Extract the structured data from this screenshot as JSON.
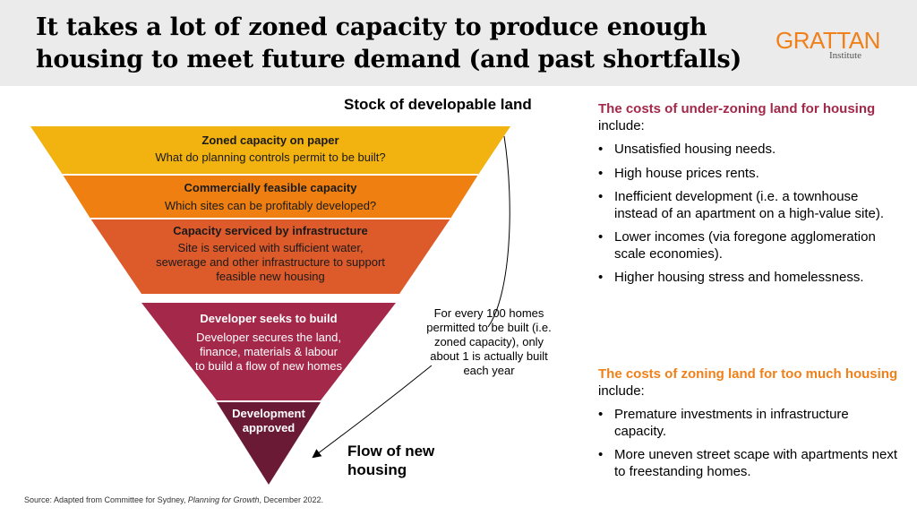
{
  "header": {
    "title_line1": "It takes a lot of zoned capacity to produce enough",
    "title_line2": "housing to meet future demand (and past shortfalls)",
    "logo_main": "GRATTAN",
    "logo_sub": "Institute"
  },
  "diagram": {
    "stock_heading": "Stock of developable land",
    "flow_heading": "Flow of new housing",
    "stock_levels": [
      {
        "title": "Zoned capacity on paper",
        "desc": "What do planning controls permit to be built?",
        "color": "#f2b20f"
      },
      {
        "title": "Commercially feasible capacity",
        "desc": "Which sites can be profitably developed?",
        "color": "#ee7f10"
      },
      {
        "title": "Capacity serviced by infrastructure",
        "desc": "Site is serviced with sufficient water, sewerage and other infrastructure to support feasible new housing",
        "color": "#dd5a2a"
      }
    ],
    "flow_levels": [
      {
        "title": "Developer seeks to build",
        "desc": "Developer secures the land, finance, materials & labour to build a flow of new homes",
        "color": "#a3284a"
      },
      {
        "title": "Development approved",
        "desc": "",
        "color": "#6b1a35"
      }
    ],
    "annotation": "For every 100 homes permitted to be built (i.e. zoned capacity), only about 1 is actually built each year"
  },
  "costs_under": {
    "heading_highlight": "The costs of under-zoning land for housing",
    "heading_rest": " include:",
    "items": [
      "Unsatisfied housing needs.",
      "High house prices rents.",
      "Inefficient development (i.e. a townhouse instead of an apartment on a high-value site).",
      "Lower incomes (via foregone agglomeration scale economies).",
      "Higher housing stress and homelessness."
    ]
  },
  "costs_over": {
    "heading_highlight": "The costs of zoning land for too much housing",
    "heading_rest": " include:",
    "items": [
      "Premature investments in infrastructure capacity.",
      "More uneven street scape with apartments next to freestanding homes."
    ]
  },
  "source": {
    "prefix": "Source: Adapted from Committee for Sydney, ",
    "title": "Planning for Growth",
    "suffix": ", December 2022."
  }
}
